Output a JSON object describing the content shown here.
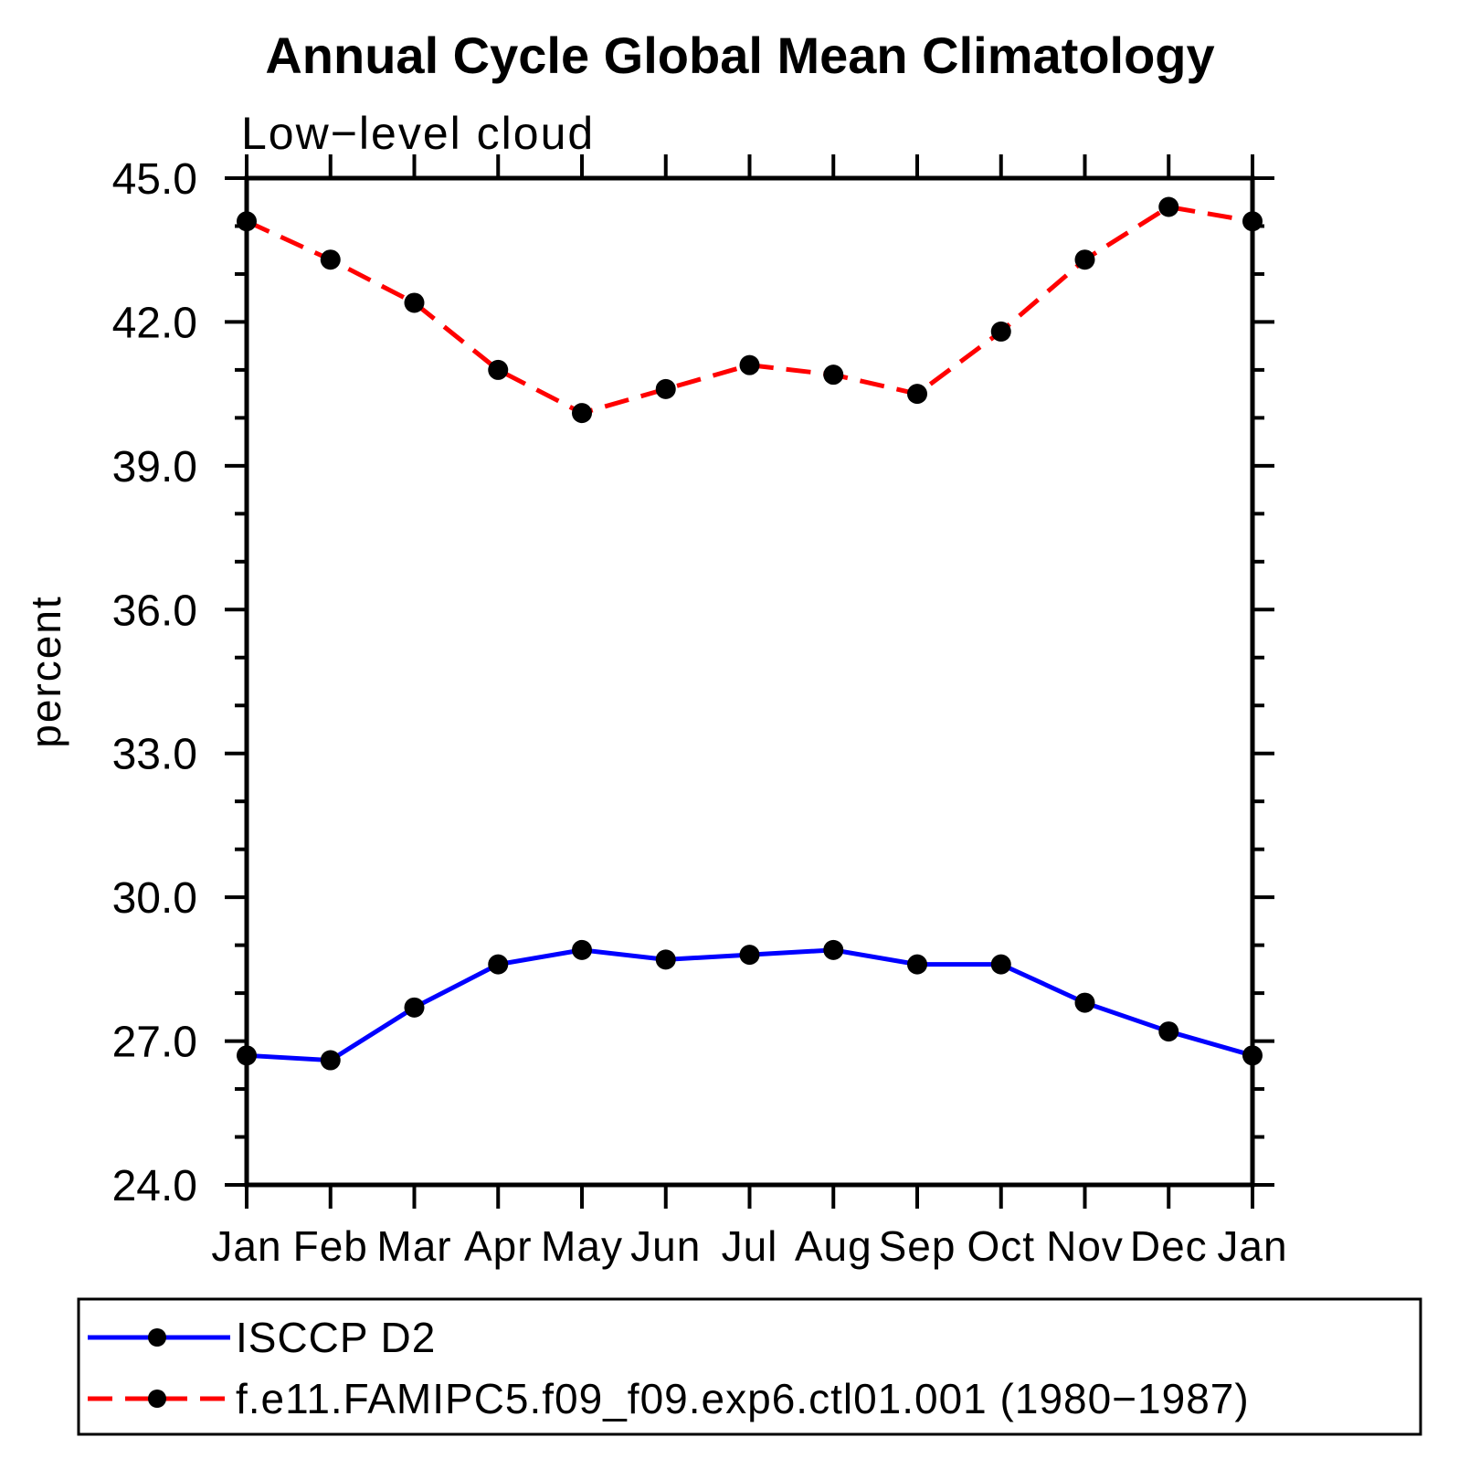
{
  "title": "Annual Cycle Global Mean Climatology",
  "subtitle": "Low−level cloud",
  "chart_data": {
    "type": "line",
    "x_categories": [
      "Jan",
      "Feb",
      "Mar",
      "Apr",
      "May",
      "Jun",
      "Jul",
      "Aug",
      "Sep",
      "Oct",
      "Nov",
      "Dec",
      "Jan"
    ],
    "series": [
      {
        "name": "ISCCP D2",
        "color": "#0000ff",
        "line_style": "solid",
        "marker": "filled-circle",
        "marker_color": "#000000",
        "values": [
          26.7,
          26.6,
          27.7,
          28.6,
          28.9,
          28.7,
          28.8,
          28.9,
          28.6,
          28.6,
          27.8,
          27.2,
          26.7
        ]
      },
      {
        "name": "f.e11.FAMIPC5.f09_f09.exp6.ctl01.001 (1980−1987)",
        "color": "#ff0000",
        "line_style": "dashed",
        "marker": "filled-circle",
        "marker_color": "#000000",
        "values": [
          44.1,
          43.3,
          42.4,
          41.0,
          40.1,
          40.6,
          41.1,
          40.9,
          40.5,
          41.8,
          43.3,
          44.4,
          44.1
        ]
      }
    ],
    "xlabel": "",
    "ylabel": "percent",
    "ylim": [
      24.0,
      45.0
    ],
    "ytick_major_interval": 3.0,
    "ytick_minor_interval": 1.0,
    "ytick_labels": [
      "24.0",
      "27.0",
      "30.0",
      "33.0",
      "36.0",
      "39.0",
      "42.0",
      "45.0"
    ],
    "grid": false,
    "frame": "box-with-outward-ticks",
    "legend_position": "bottom"
  },
  "colors": {
    "axis": "#000000",
    "background": "#ffffff",
    "obs_line": "#0000ff",
    "model_line": "#ff0000",
    "marker": "#000000"
  }
}
